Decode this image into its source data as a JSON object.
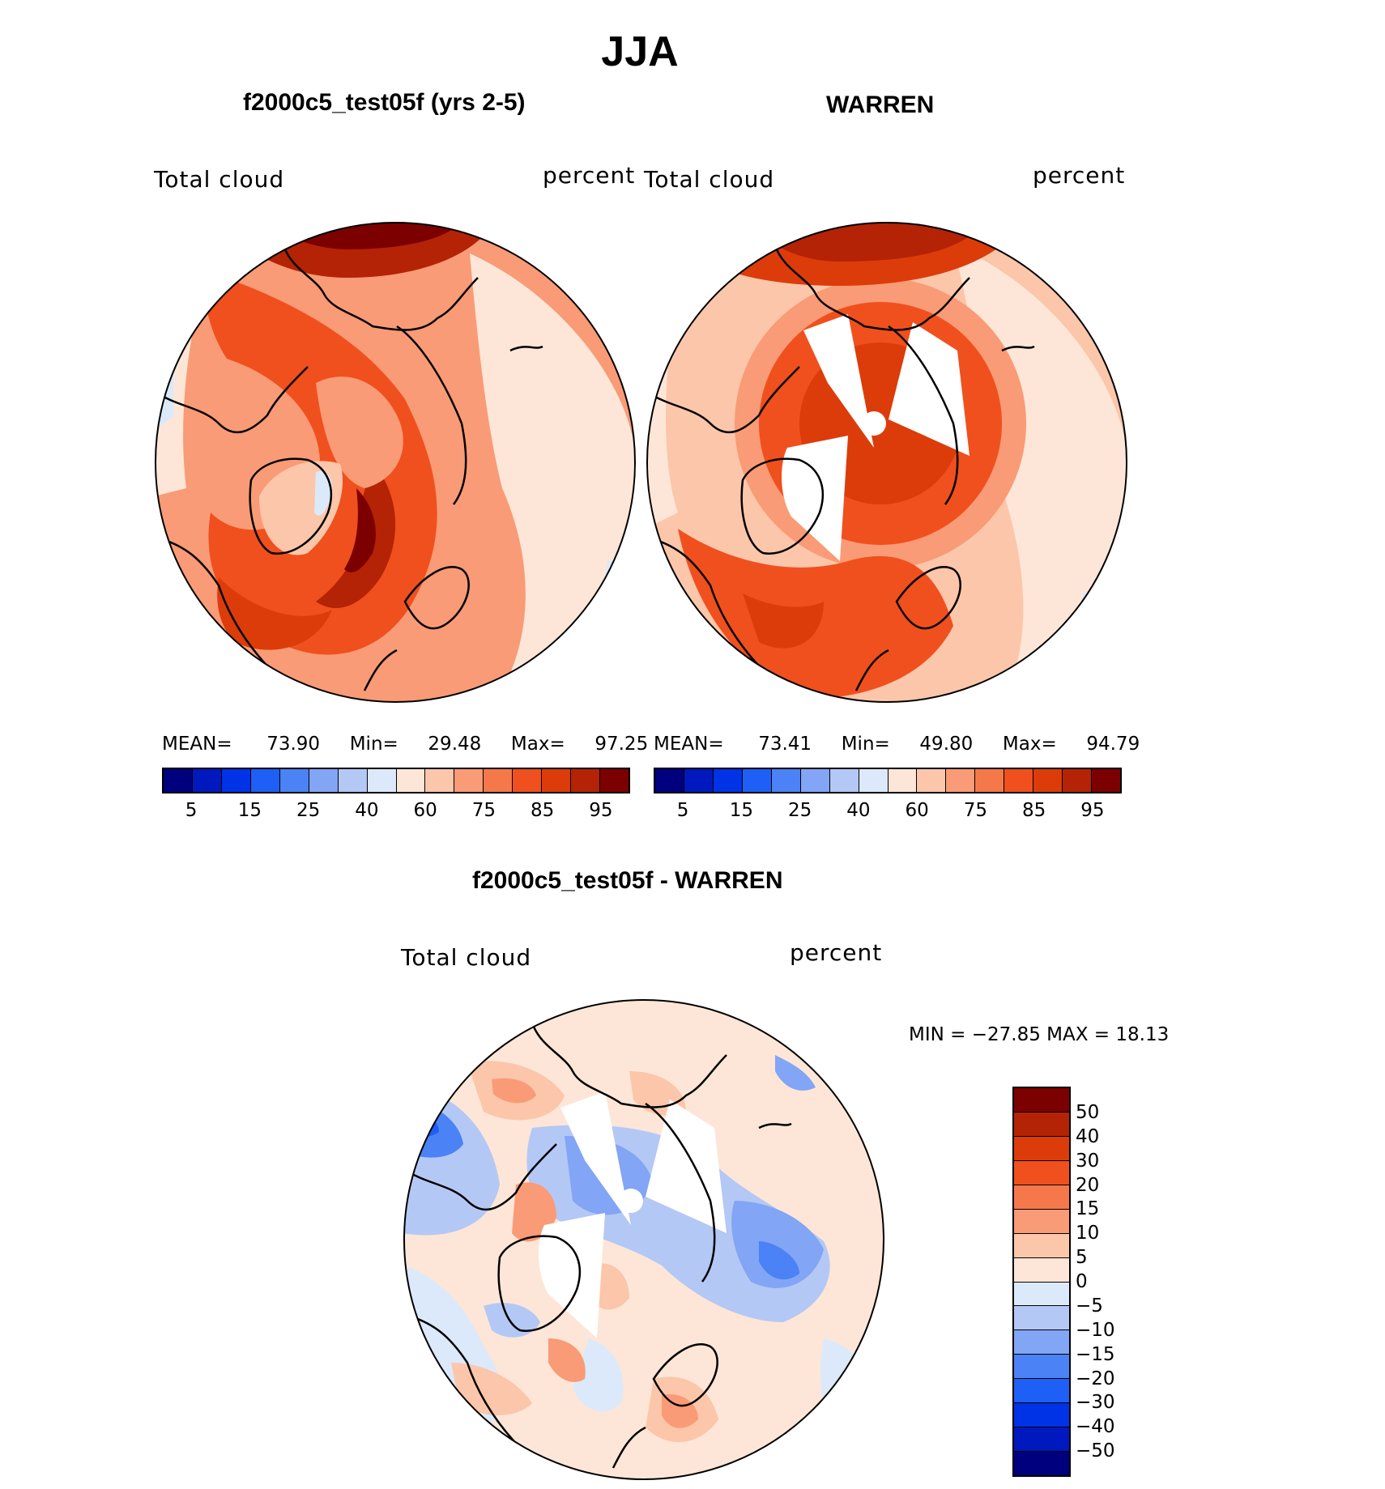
{
  "title": "JJA",
  "panels": {
    "model": {
      "title": "f2000c5_test05f (yrs 2-5)",
      "left_label": "Total cloud",
      "right_label": "percent",
      "mean_label": "MEAN=",
      "mean_value": "73.90",
      "min_label": "Min=",
      "min_value": "29.48",
      "max_label": "Max=",
      "max_value": "97.25"
    },
    "obs": {
      "title": "WARREN",
      "left_label": "Total cloud",
      "right_label": "percent",
      "mean_label": "MEAN=",
      "mean_value": "73.41",
      "min_label": "Min=",
      "min_value": "49.80",
      "max_label": "Max=",
      "max_value": "94.79"
    },
    "diff": {
      "title": "f2000c5_test05f - WARREN",
      "left_label": "Total cloud",
      "right_label": "percent",
      "minmax_text": "MIN = −27.85 MAX =   18.13"
    }
  },
  "colorbar_abs": {
    "colors": [
      "#00007f",
      "#0019bf",
      "#0032e6",
      "#1e5ff5",
      "#4b82f5",
      "#82a5f5",
      "#b4c8f5",
      "#dce9fa",
      "#fde6d7",
      "#fbc6aa",
      "#f99b76",
      "#f5784b",
      "#f0501e",
      "#dc3c0a",
      "#b42305",
      "#7d0000"
    ],
    "ticks": [
      "5",
      "15",
      "25",
      "40",
      "60",
      "75",
      "85",
      "95"
    ]
  },
  "colorbar_diff": {
    "colors": [
      "#7d0000",
      "#b42305",
      "#dc3c0a",
      "#f0501e",
      "#f5784b",
      "#f99b76",
      "#fbc6aa",
      "#fde6d7",
      "#dce9fa",
      "#b4c8f5",
      "#82a5f5",
      "#4b82f5",
      "#1e5ff5",
      "#0032e6",
      "#0019bf",
      "#00007f"
    ],
    "ticks": [
      "50",
      "40",
      "30",
      "20",
      "15",
      "10",
      "5",
      "0",
      "−5",
      "−10",
      "−15",
      "−20",
      "−30",
      "−40",
      "−50"
    ]
  },
  "map_colors": {
    "ocean_dark": "#dc3c0a",
    "land_line": "#000000",
    "missing": "#ffffff"
  }
}
